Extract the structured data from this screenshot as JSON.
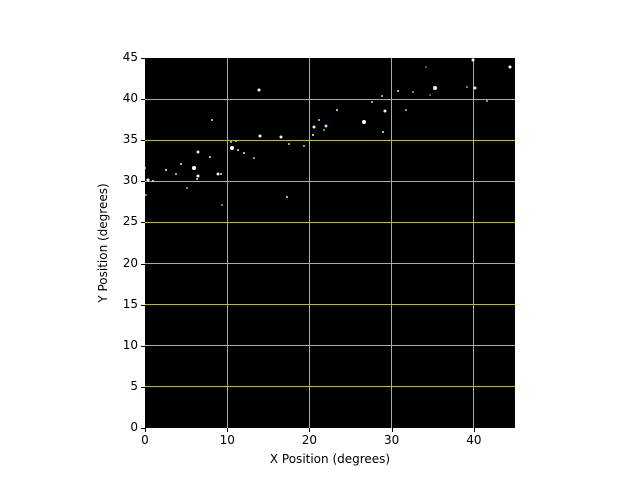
{
  "window": {
    "background": "#ffffff",
    "plot_background": "#000000",
    "grid_color": "#bdbb20",
    "tick_color": "#000000",
    "text_color": "#000000"
  },
  "chart_data": {
    "type": "scatter",
    "title": "",
    "xlabel": "X Position (degrees)",
    "ylabel": "Y Position (degrees)",
    "xlim": [
      0,
      45
    ],
    "ylim": [
      0,
      45
    ],
    "xticks": [
      0,
      10,
      20,
      30,
      40
    ],
    "yticks": [
      0,
      5,
      10,
      15,
      20,
      25,
      30,
      35,
      40,
      45
    ],
    "grid": true,
    "legend": false,
    "points": [
      {
        "x": 0.05,
        "y": 31.6,
        "s": 2,
        "c": "#d9d9d9"
      },
      {
        "x": 0.4,
        "y": 30.2,
        "s": 3,
        "c": "#ffffff"
      },
      {
        "x": 0.95,
        "y": 30.1,
        "s": 2,
        "c": "#e6e6e6"
      },
      {
        "x": 0.1,
        "y": 28.3,
        "s": 2,
        "c": "#b3b3b3"
      },
      {
        "x": 2.5,
        "y": 31.4,
        "s": 2,
        "c": "#ffffff"
      },
      {
        "x": 3.8,
        "y": 30.9,
        "s": 2,
        "c": "#e0e0e0"
      },
      {
        "x": 4.4,
        "y": 32.1,
        "s": 2,
        "c": "#e6e6e6"
      },
      {
        "x": 5.15,
        "y": 29.2,
        "s": 2,
        "c": "#a6a6a6"
      },
      {
        "x": 5.9,
        "y": 31.6,
        "s": 4,
        "c": "#ffffff"
      },
      {
        "x": 6.4,
        "y": 33.6,
        "s": 3,
        "c": "#f2ead9"
      },
      {
        "x": 6.5,
        "y": 30.6,
        "s": 3,
        "c": "#ffffff"
      },
      {
        "x": 6.35,
        "y": 30.3,
        "s": 2,
        "c": "#d9d9d9"
      },
      {
        "x": 7.9,
        "y": 32.9,
        "s": 2,
        "c": "#e6e6e6"
      },
      {
        "x": 8.2,
        "y": 37.5,
        "s": 2,
        "c": "#e6dfca"
      },
      {
        "x": 8.9,
        "y": 30.9,
        "s": 3,
        "c": "#f2f2f2"
      },
      {
        "x": 9.3,
        "y": 30.9,
        "s": 2,
        "c": "#d9d9d9"
      },
      {
        "x": 9.4,
        "y": 27.1,
        "s": 2,
        "c": "#999999"
      },
      {
        "x": 10.5,
        "y": 34.8,
        "s": 2,
        "c": "#cccccc"
      },
      {
        "x": 11.1,
        "y": 34.9,
        "s": 2,
        "c": "#cccccc"
      },
      {
        "x": 10.6,
        "y": 34.0,
        "s": 4,
        "c": "#ffffff"
      },
      {
        "x": 11.3,
        "y": 33.8,
        "s": 2,
        "c": "#e6e6e6"
      },
      {
        "x": 12.1,
        "y": 33.5,
        "s": 2,
        "c": "#f0f0f0"
      },
      {
        "x": 13.3,
        "y": 32.8,
        "s": 2,
        "c": "#b3b3b3"
      },
      {
        "x": 13.9,
        "y": 41.1,
        "s": 3,
        "c": "#fdf8ef"
      },
      {
        "x": 14.0,
        "y": 35.5,
        "s": 3,
        "c": "#fdf4e3"
      },
      {
        "x": 16.5,
        "y": 35.4,
        "s": 3,
        "c": "#fcf0d8"
      },
      {
        "x": 17.3,
        "y": 28.1,
        "s": 2,
        "c": "#e6e6e6"
      },
      {
        "x": 17.5,
        "y": 34.6,
        "s": 2,
        "c": "#cfcfcf"
      },
      {
        "x": 19.3,
        "y": 34.3,
        "s": 2,
        "c": "#cfcfcf"
      },
      {
        "x": 20.4,
        "y": 35.6,
        "s": 2,
        "c": "#f0f0f0"
      },
      {
        "x": 20.6,
        "y": 36.6,
        "s": 3,
        "c": "#ffe9b3"
      },
      {
        "x": 21.2,
        "y": 37.5,
        "s": 2,
        "c": "#d9d0b0"
      },
      {
        "x": 21.8,
        "y": 36.2,
        "s": 2,
        "c": "#a6a6a6"
      },
      {
        "x": 22.0,
        "y": 36.7,
        "s": 3,
        "c": "#9fd9ff"
      },
      {
        "x": 23.3,
        "y": 38.7,
        "s": 2,
        "c": "#e6e6e6"
      },
      {
        "x": 26.6,
        "y": 37.2,
        "s": 4,
        "c": "#ffffff"
      },
      {
        "x": 27.6,
        "y": 39.7,
        "s": 2,
        "c": "#cccccc"
      },
      {
        "x": 28.8,
        "y": 40.4,
        "s": 2,
        "c": "#d9caa1"
      },
      {
        "x": 29.2,
        "y": 38.5,
        "s": 3,
        "c": "#ffe9c0"
      },
      {
        "x": 29.0,
        "y": 36.0,
        "s": 2,
        "c": "#f0f0f0"
      },
      {
        "x": 30.8,
        "y": 41.0,
        "s": 2,
        "c": "#e6e6e6"
      },
      {
        "x": 31.7,
        "y": 38.7,
        "s": 2,
        "c": "#b3b3b3"
      },
      {
        "x": 32.6,
        "y": 40.9,
        "s": 2,
        "c": "#e8a050"
      },
      {
        "x": 34.2,
        "y": 43.9,
        "s": 2,
        "c": "#b06030"
      },
      {
        "x": 34.7,
        "y": 40.5,
        "s": 2,
        "c": "#a66a38"
      },
      {
        "x": 35.3,
        "y": 41.4,
        "s": 4,
        "c": "#fdeecb"
      },
      {
        "x": 39.2,
        "y": 41.5,
        "s": 2,
        "c": "#999999"
      },
      {
        "x": 40.1,
        "y": 41.4,
        "s": 3,
        "c": "#efece2"
      },
      {
        "x": 39.9,
        "y": 44.7,
        "s": 3,
        "c": "#ffffff"
      },
      {
        "x": 41.6,
        "y": 39.8,
        "s": 2,
        "c": "#c0b890"
      },
      {
        "x": 44.4,
        "y": 43.9,
        "s": 3,
        "c": "#ffffff"
      }
    ]
  }
}
